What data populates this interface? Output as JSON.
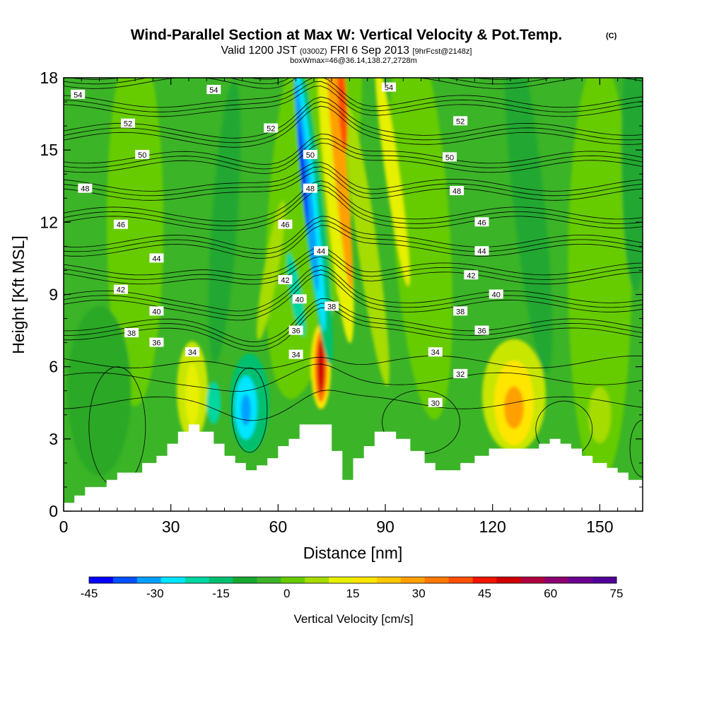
{
  "chart_data": {
    "type": "heatmap",
    "title": "Wind-Parallel Section at Max W: Vertical Velocity & Pot.Temp.",
    "title_mark": "(C)",
    "subtitle_parts": [
      "Valid 1200 JST",
      "(0300Z)",
      "FRI 6 Sep 2013",
      "[9hrFcst@2148z]"
    ],
    "subtitle2": "boxWmax=46@36.14,138.27,2728m",
    "xlabel": "Distance [nm]",
    "ylabel": "Height [Kft MSL]",
    "xlim": [
      0,
      162
    ],
    "ylim": [
      0,
      18
    ],
    "x_ticks": [
      0,
      30,
      60,
      90,
      120,
      150
    ],
    "y_ticks": [
      0,
      3,
      6,
      9,
      12,
      15,
      18
    ],
    "colorbar": {
      "label": "Vertical Velocity [cm/s]",
      "range": [
        -45,
        75
      ],
      "tick_values": [
        -45,
        -30,
        -15,
        0,
        15,
        30,
        45,
        60,
        75
      ],
      "colors": [
        "#0000ff",
        "#0050ff",
        "#00a0ff",
        "#00e6ff",
        "#00d6a0",
        "#00c070",
        "#18a830",
        "#3cb428",
        "#66cc00",
        "#a6dc00",
        "#e6f000",
        "#ffe600",
        "#ffc800",
        "#ffa000",
        "#ff7800",
        "#ff5000",
        "#f01400",
        "#d00000",
        "#b00040",
        "#8c0070",
        "#6a0090",
        "#500098"
      ]
    },
    "pot_temp_contours": [
      30,
      32,
      34,
      36,
      38,
      40,
      42,
      44,
      46,
      48,
      50,
      52,
      54
    ],
    "contour_labels": [
      {
        "x": 4,
        "y": 17.3,
        "value": 54
      },
      {
        "x": 42,
        "y": 17.5,
        "value": 54
      },
      {
        "x": 91,
        "y": 17.6,
        "value": 54
      },
      {
        "x": 18,
        "y": 16.1,
        "value": 52
      },
      {
        "x": 58,
        "y": 15.9,
        "value": 52
      },
      {
        "x": 111,
        "y": 16.2,
        "value": 52
      },
      {
        "x": 22,
        "y": 14.8,
        "value": 50
      },
      {
        "x": 69,
        "y": 14.8,
        "value": 50
      },
      {
        "x": 108,
        "y": 14.7,
        "value": 50
      },
      {
        "x": 6,
        "y": 13.4,
        "value": 48
      },
      {
        "x": 69,
        "y": 13.4,
        "value": 48
      },
      {
        "x": 110,
        "y": 13.3,
        "value": 48
      },
      {
        "x": 16,
        "y": 11.9,
        "value": 46
      },
      {
        "x": 62,
        "y": 11.9,
        "value": 46
      },
      {
        "x": 117,
        "y": 12.0,
        "value": 46
      },
      {
        "x": 26,
        "y": 10.5,
        "value": 44
      },
      {
        "x": 72,
        "y": 10.8,
        "value": 44
      },
      {
        "x": 117,
        "y": 10.8,
        "value": 44
      },
      {
        "x": 16,
        "y": 9.2,
        "value": 42
      },
      {
        "x": 62,
        "y": 9.6,
        "value": 42
      },
      {
        "x": 114,
        "y": 9.8,
        "value": 42
      },
      {
        "x": 26,
        "y": 8.3,
        "value": 40
      },
      {
        "x": 66,
        "y": 8.8,
        "value": 40
      },
      {
        "x": 121,
        "y": 9.0,
        "value": 40
      },
      {
        "x": 19,
        "y": 7.4,
        "value": 38
      },
      {
        "x": 75,
        "y": 8.5,
        "value": 38
      },
      {
        "x": 111,
        "y": 8.3,
        "value": 38
      },
      {
        "x": 26,
        "y": 7.0,
        "value": 36
      },
      {
        "x": 65,
        "y": 7.5,
        "value": 36
      },
      {
        "x": 117,
        "y": 7.5,
        "value": 36
      },
      {
        "x": 36,
        "y": 6.6,
        "value": 34
      },
      {
        "x": 65,
        "y": 6.5,
        "value": 34
      },
      {
        "x": 104,
        "y": 6.6,
        "value": 34
      },
      {
        "x": 111,
        "y": 5.7,
        "value": 32
      },
      {
        "x": 104,
        "y": 4.5,
        "value": 30
      }
    ],
    "terrain": [
      [
        0,
        0.35
      ],
      [
        3,
        0.65
      ],
      [
        6,
        1.0
      ],
      [
        12,
        1.3
      ],
      [
        15,
        1.6
      ],
      [
        22,
        2.0
      ],
      [
        26,
        2.3
      ],
      [
        29,
        2.8
      ],
      [
        32,
        3.3
      ],
      [
        35,
        3.6
      ],
      [
        38,
        3.3
      ],
      [
        42,
        2.8
      ],
      [
        45,
        2.3
      ],
      [
        48,
        2.0
      ],
      [
        51,
        1.7
      ],
      [
        54,
        1.9
      ],
      [
        57,
        2.2
      ],
      [
        60,
        2.7
      ],
      [
        63,
        3.0
      ],
      [
        66,
        3.6
      ],
      [
        69,
        3.6
      ],
      [
        72,
        3.6
      ],
      [
        75,
        2.5
      ],
      [
        78,
        1.3
      ],
      [
        81,
        2.2
      ],
      [
        84,
        2.7
      ],
      [
        87,
        3.3
      ],
      [
        90,
        3.3
      ],
      [
        93,
        3.0
      ],
      [
        97,
        2.5
      ],
      [
        101,
        2.0
      ],
      [
        104,
        1.7
      ],
      [
        108,
        1.7
      ],
      [
        111,
        2.0
      ],
      [
        115,
        2.3
      ],
      [
        119,
        2.6
      ],
      [
        123,
        2.6
      ],
      [
        126,
        2.6
      ],
      [
        130,
        2.6
      ],
      [
        133,
        2.8
      ],
      [
        136,
        3.0
      ],
      [
        139,
        2.8
      ],
      [
        142,
        2.6
      ],
      [
        145,
        2.3
      ],
      [
        148,
        2.0
      ],
      [
        152,
        1.8
      ],
      [
        155,
        1.6
      ],
      [
        158,
        1.3
      ],
      [
        162,
        1.3
      ]
    ]
  }
}
